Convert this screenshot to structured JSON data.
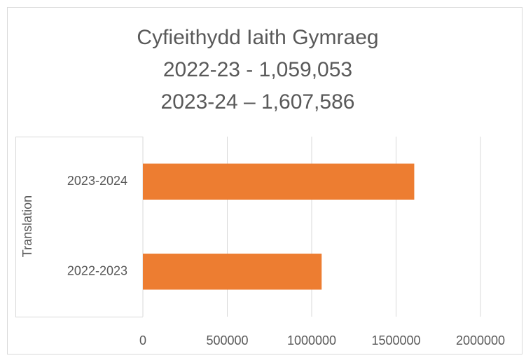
{
  "chart_data": {
    "type": "bar",
    "orientation": "horizontal",
    "title": [
      "Cyfieithydd Iaith Gymraeg",
      "2022-23 - 1,059,053",
      "2023-24 – 1,607,586"
    ],
    "y_label": "Translation",
    "categories": [
      "2022-2023",
      "2023-2024"
    ],
    "values": [
      1059053,
      1607586
    ],
    "color": "#ed7d31",
    "xlim": [
      0,
      2000000
    ],
    "xticks": [
      0,
      500000,
      1000000,
      1500000,
      2000000
    ],
    "grid": true
  }
}
